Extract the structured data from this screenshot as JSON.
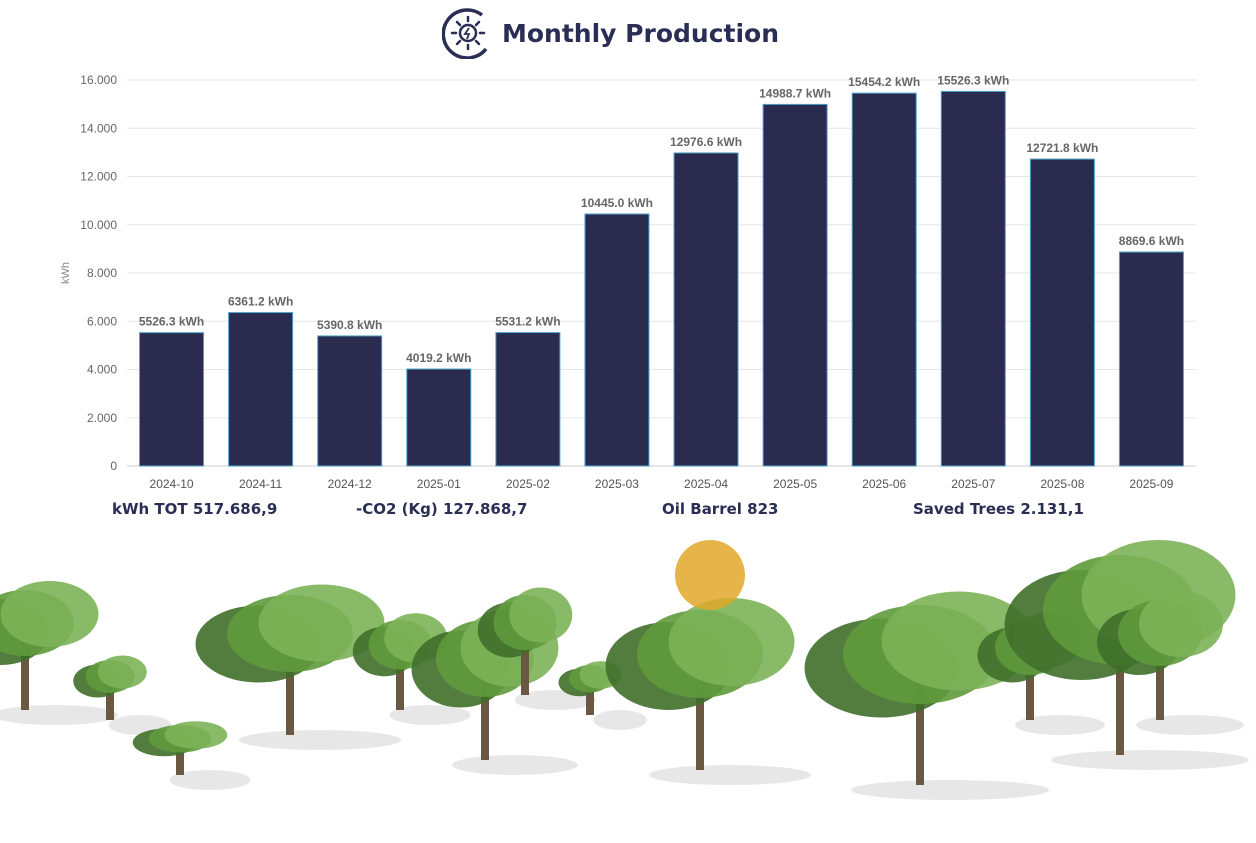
{
  "header": {
    "title": "Monthly Production",
    "icon": "solar-sun-icon"
  },
  "chart_data": {
    "type": "bar",
    "title": "Monthly Production",
    "xlabel": "",
    "ylabel": "kWh",
    "ylim": [
      0,
      16000
    ],
    "yticks": [
      "0",
      "2.000",
      "4.000",
      "6.000",
      "8.000",
      "10.000",
      "12.000",
      "14.000",
      "16.000"
    ],
    "grid": true,
    "categories": [
      "2024-10",
      "2024-11",
      "2024-12",
      "2025-01",
      "2025-02",
      "2025-03",
      "2025-04",
      "2025-05",
      "2025-06",
      "2025-07",
      "2025-08",
      "2025-09"
    ],
    "values": [
      5526.3,
      6361.2,
      5390.8,
      4019.2,
      5531.2,
      10445.0,
      12976.6,
      14988.7,
      15454.2,
      15526.3,
      12721.8,
      8869.6
    ],
    "data_labels": [
      "5526.3 kWh",
      "6361.2 kWh",
      "5390.8 kWh",
      "4019.2 kWh",
      "5531.2 kWh",
      "10445.0 kWh",
      "12976.6 kWh",
      "14988.7 kWh",
      "15454.2 kWh",
      "15526.3 kWh",
      "12721.8 kWh",
      "8869.6 kWh"
    ],
    "bar_color": "#2a2b4f",
    "bar_edge_color": "#4aa3c8"
  },
  "stats": {
    "kwh_total": "kWh TOT 517.686,9",
    "co2": "-CO2 (Kg) 127.868,7",
    "oil": "Oil Barrel 823",
    "trees": "Saved Trees 2.131,1"
  }
}
